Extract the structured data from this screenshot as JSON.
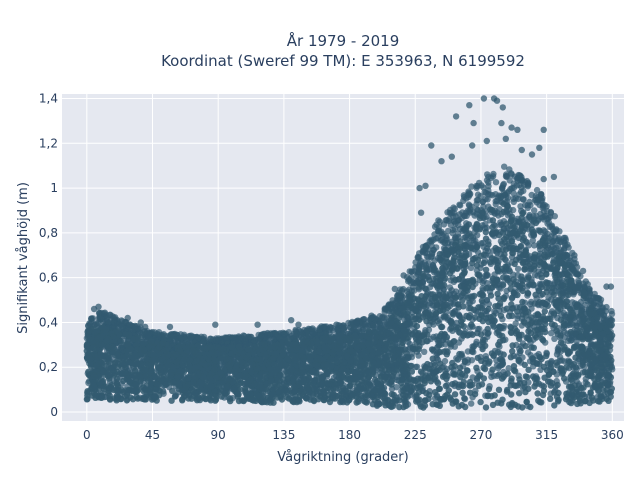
{
  "chart_data": {
    "type": "scatter",
    "title_line1": "År 1979 - 2019",
    "title_line2": "Koordinat (Sweref 99 TM): E 353963, N 6199592",
    "xlabel": "Vågriktning (grader)",
    "ylabel": "Signifikant våghöjd (m)",
    "xlim": [
      -17,
      368
    ],
    "ylim": [
      -0.04,
      1.42
    ],
    "x_ticks": [
      0,
      45,
      90,
      135,
      180,
      225,
      270,
      315,
      360
    ],
    "y_ticks": [
      0,
      0.2,
      0.4,
      0.6,
      0.8,
      1,
      1.2,
      1.4
    ],
    "y_tick_labels": [
      "0",
      "0,2",
      "0,4",
      "0,6",
      "0,8",
      "1",
      "1,2",
      "1,4"
    ],
    "grid": true,
    "marker_color": "#325a70",
    "plot_background": "#e5e8f0",
    "envelope": {
      "description_points_direction_deg": [
        0,
        10,
        45,
        90,
        135,
        180,
        200,
        215,
        225,
        240,
        255,
        270,
        285,
        300,
        315,
        330,
        345,
        360
      ],
      "upper_height_m": [
        0.42,
        0.45,
        0.36,
        0.33,
        0.36,
        0.4,
        0.43,
        0.55,
        0.68,
        0.85,
        0.95,
        1.05,
        1.1,
        1.05,
        0.95,
        0.75,
        0.55,
        0.45
      ],
      "lower_height_m": [
        0.05,
        0.05,
        0.05,
        0.05,
        0.04,
        0.04,
        0.02,
        0.02,
        0.02,
        0.02,
        0.02,
        0.02,
        0.02,
        0.02,
        0.02,
        0.03,
        0.04,
        0.05
      ]
    },
    "notable_points": [
      {
        "x": 272,
        "y": 1.4
      },
      {
        "x": 279,
        "y": 1.4
      },
      {
        "x": 281,
        "y": 1.39
      },
      {
        "x": 285,
        "y": 1.36
      },
      {
        "x": 262,
        "y": 1.37
      },
      {
        "x": 253,
        "y": 1.32
      },
      {
        "x": 265,
        "y": 1.29
      },
      {
        "x": 284,
        "y": 1.29
      },
      {
        "x": 291,
        "y": 1.27
      },
      {
        "x": 295,
        "y": 1.26
      },
      {
        "x": 313,
        "y": 1.26
      },
      {
        "x": 287,
        "y": 1.22
      },
      {
        "x": 264,
        "y": 1.19
      },
      {
        "x": 274,
        "y": 1.21
      },
      {
        "x": 236,
        "y": 1.19
      },
      {
        "x": 298,
        "y": 1.17
      },
      {
        "x": 305,
        "y": 1.15
      },
      {
        "x": 310,
        "y": 1.18
      },
      {
        "x": 250,
        "y": 1.14
      },
      {
        "x": 243,
        "y": 1.12
      },
      {
        "x": 320,
        "y": 1.05
      },
      {
        "x": 313,
        "y": 1.04
      },
      {
        "x": 232,
        "y": 1.01
      },
      {
        "x": 228,
        "y": 1.0
      },
      {
        "x": 229,
        "y": 0.89
      },
      {
        "x": 334,
        "y": 0.7
      },
      {
        "x": 340,
        "y": 0.63
      },
      {
        "x": 356,
        "y": 0.56
      },
      {
        "x": 359,
        "y": 0.56
      },
      {
        "x": 8,
        "y": 0.47
      },
      {
        "x": 5,
        "y": 0.46
      },
      {
        "x": 12,
        "y": 0.44
      },
      {
        "x": 28,
        "y": 0.42
      },
      {
        "x": 37,
        "y": 0.4
      },
      {
        "x": 40,
        "y": 0.38
      },
      {
        "x": 57,
        "y": 0.38
      },
      {
        "x": 88,
        "y": 0.39
      },
      {
        "x": 117,
        "y": 0.39
      },
      {
        "x": 140,
        "y": 0.41
      },
      {
        "x": 145,
        "y": 0.39
      },
      {
        "x": 155,
        "y": 0.35
      },
      {
        "x": 171,
        "y": 0.39
      },
      {
        "x": 195,
        "y": 0.43
      },
      {
        "x": 185,
        "y": 0.4
      },
      {
        "x": 211,
        "y": 0.55
      },
      {
        "x": 217,
        "y": 0.61
      }
    ]
  }
}
